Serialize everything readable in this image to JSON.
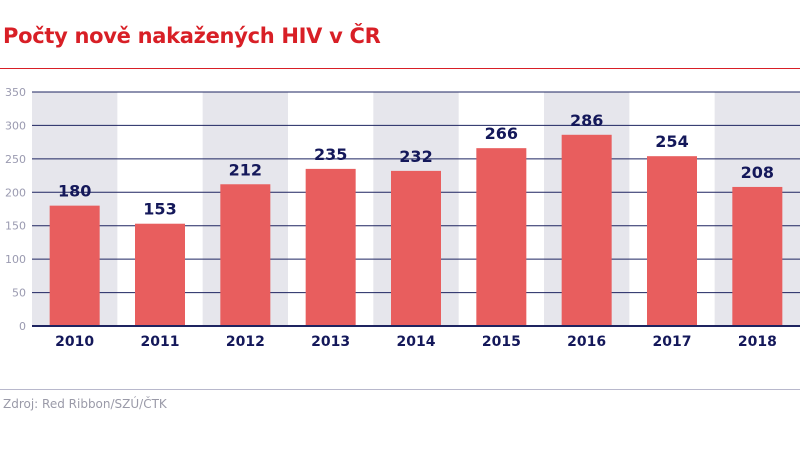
{
  "chart_data": {
    "type": "bar",
    "title": "Počty nově nakažených HIV v ČR",
    "categories": [
      "2010",
      "2011",
      "2012",
      "2013",
      "2014",
      "2015",
      "2016",
      "2017",
      "2018"
    ],
    "values": [
      180,
      153,
      212,
      235,
      232,
      266,
      286,
      254,
      208
    ],
    "xlabel": "",
    "ylabel": "",
    "ylim": [
      0,
      350
    ],
    "yticks": [
      0,
      50,
      100,
      150,
      200,
      250,
      300,
      350
    ],
    "grid": true,
    "legend": "none",
    "source": "Zdroj: Red Ribbon/SZÚ/ČTK",
    "colors": {
      "bar": "#e85e5e",
      "band": "#e6e6ec",
      "grid": "#1e2460",
      "label": "#14185a",
      "title": "#d81f26",
      "tick": "#9a9ab0"
    }
  }
}
